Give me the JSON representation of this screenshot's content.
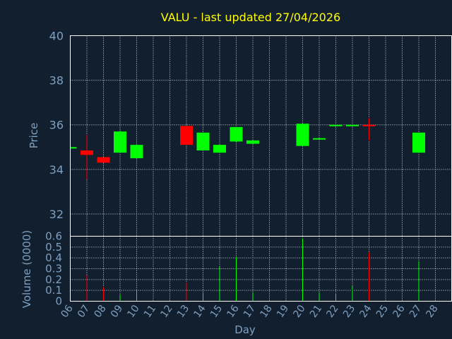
{
  "chart_data": {
    "type": "candlestick",
    "title": "VALU - last updated 27/04/2026",
    "xlabel": "Day",
    "price_panel": {
      "ylabel": "Price",
      "ylim": [
        31,
        40
      ],
      "yticks": [
        32,
        34,
        36,
        38,
        40
      ]
    },
    "volume_panel": {
      "ylabel": "Volume (0000)",
      "ylim": [
        0,
        0.6
      ],
      "yticks": [
        "0",
        "0.1",
        "0.2",
        "0.3",
        "0.4",
        "0.5",
        "0.6"
      ]
    },
    "day_ticks": [
      "06",
      "07",
      "08",
      "09",
      "10",
      "11",
      "12",
      "13",
      "14",
      "15",
      "16",
      "17",
      "18",
      "19",
      "20",
      "21",
      "22",
      "23",
      "24",
      "25",
      "26",
      "27",
      "28"
    ],
    "grid": true,
    "colors": {
      "up": "#00ff00",
      "down": "#ff0000",
      "title": "#ffff00",
      "axis": "#7fa0c0",
      "background": "#111f2f",
      "frame": "#ffffff"
    },
    "candles": [
      {
        "day": "06",
        "open": 35.0,
        "high": 35.0,
        "low": 35.0,
        "close": 35.0,
        "volume": 0.0
      },
      {
        "day": "07",
        "open": 34.85,
        "high": 35.55,
        "low": 33.55,
        "close": 34.65,
        "volume": 0.24
      },
      {
        "day": "08",
        "open": 34.55,
        "high": 34.55,
        "low": 34.3,
        "close": 34.3,
        "volume": 0.13
      },
      {
        "day": "09",
        "open": 34.75,
        "high": 35.75,
        "low": 34.75,
        "close": 35.7,
        "volume": 0.06
      },
      {
        "day": "10",
        "open": 34.5,
        "high": 35.1,
        "low": 34.5,
        "close": 35.1,
        "volume": 0.11
      },
      {
        "day": "13",
        "open": 35.95,
        "high": 35.95,
        "low": 35.1,
        "close": 35.1,
        "volume": 0.17
      },
      {
        "day": "14",
        "open": 34.85,
        "high": 35.65,
        "low": 34.85,
        "close": 35.65,
        "volume": 0.08
      },
      {
        "day": "15",
        "open": 34.75,
        "high": 35.1,
        "low": 34.75,
        "close": 35.1,
        "volume": 0.32
      },
      {
        "day": "16",
        "open": 35.25,
        "high": 35.9,
        "low": 35.25,
        "close": 35.9,
        "volume": 0.41
      },
      {
        "day": "17",
        "open": 35.15,
        "high": 35.3,
        "low": 35.15,
        "close": 35.3,
        "volume": 0.08
      },
      {
        "day": "20",
        "open": 35.05,
        "high": 36.05,
        "low": 35.05,
        "close": 36.05,
        "volume": 0.58
      },
      {
        "day": "21",
        "open": 35.35,
        "high": 35.4,
        "low": 35.35,
        "close": 35.4,
        "volume": 0.08
      },
      {
        "day": "22",
        "open": 35.95,
        "high": 36.0,
        "low": 35.95,
        "close": 36.0,
        "volume": 0.07
      },
      {
        "day": "23",
        "open": 35.95,
        "high": 36.0,
        "low": 35.95,
        "close": 36.0,
        "volume": 0.14
      },
      {
        "day": "24",
        "open": 36.0,
        "high": 36.3,
        "low": 35.3,
        "close": 35.95,
        "volume": 0.45
      },
      {
        "day": "27",
        "open": 34.75,
        "high": 35.65,
        "low": 34.75,
        "close": 35.65,
        "volume": 0.37
      }
    ]
  }
}
